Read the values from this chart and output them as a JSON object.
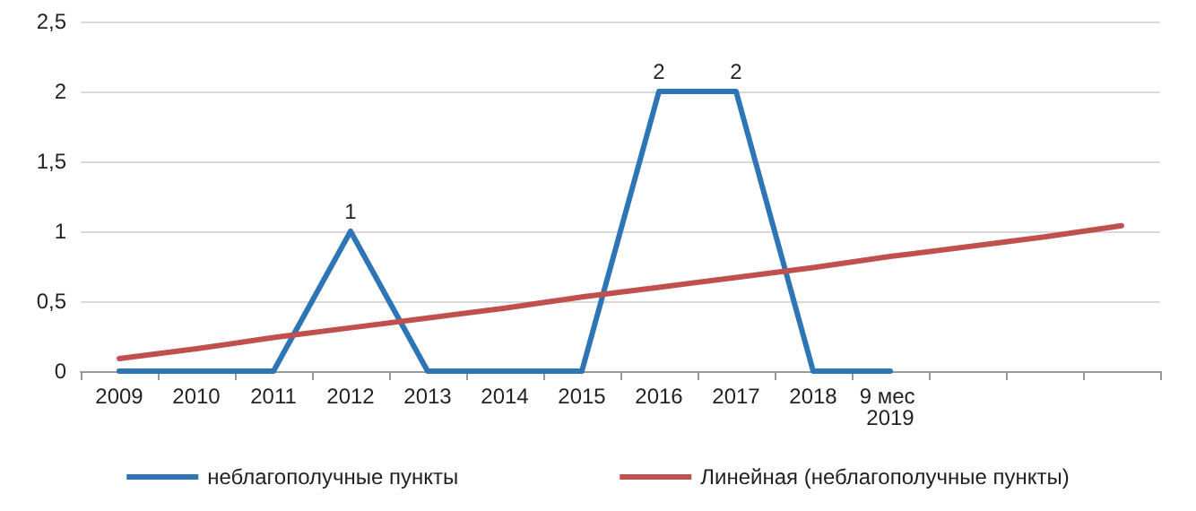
{
  "chart_data": {
    "type": "line",
    "categories": [
      "2009",
      "2010",
      "2011",
      "2012",
      "2013",
      "2014",
      "2015",
      "2016",
      "2017",
      "2018",
      "9 мес 2019",
      null,
      null,
      null
    ],
    "series": [
      {
        "name": "неблагополучные пункты",
        "color": "#2e75b6",
        "values": [
          0,
          0,
          0,
          1,
          0,
          0,
          0,
          2,
          2,
          0,
          0,
          null,
          null,
          null
        ],
        "value_labels": [
          null,
          null,
          null,
          "1",
          null,
          null,
          null,
          "2",
          "2",
          null,
          null,
          null,
          null,
          null
        ]
      },
      {
        "name": "Линейная (неблагополучные пункты)",
        "color": "#c0504d",
        "values": [
          0.09,
          0.16,
          0.24,
          0.31,
          0.38,
          0.45,
          0.53,
          0.6,
          0.67,
          0.74,
          0.82,
          0.89,
          0.96,
          1.04
        ]
      }
    ],
    "ylim": [
      0,
      2.5
    ],
    "yticks": [
      0,
      {
        "value": 0.5,
        "label": "0,5"
      },
      1,
      {
        "value": 1.5,
        "label": "1,5"
      },
      2,
      {
        "value": 2.5,
        "label": "2,5"
      }
    ],
    "grid": "y",
    "legend": "bottom",
    "marker": "none",
    "line_style": "solid"
  }
}
